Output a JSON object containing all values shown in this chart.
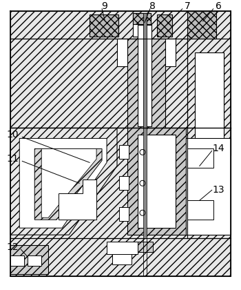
{
  "bg_color": "#ffffff",
  "figsize": [
    3.5,
    4.2
  ],
  "dpi": 100,
  "label_fontsize": 10
}
